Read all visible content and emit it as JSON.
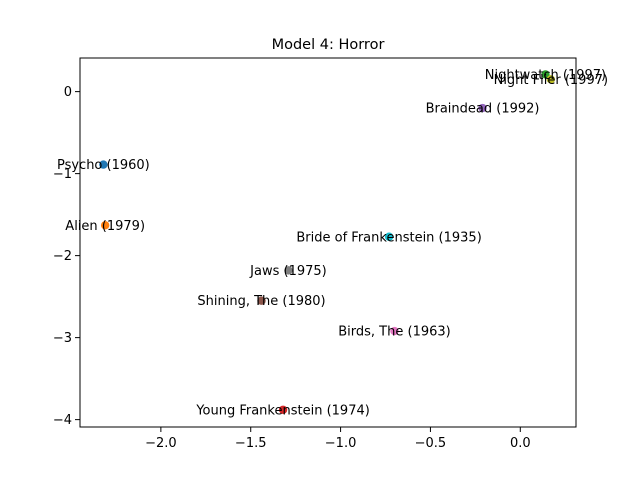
{
  "chart_data": {
    "type": "scatter",
    "title": "Model 4: Horror",
    "xlabel": "",
    "ylabel": "",
    "xlim": [
      -2.45,
      0.31
    ],
    "ylim": [
      -4.09,
      0.41
    ],
    "xticks": [
      -2.0,
      -1.5,
      -1.0,
      -0.5,
      0.0
    ],
    "xtick_labels": [
      "−2.0",
      "−1.5",
      "−1.0",
      "−0.5",
      "0.0"
    ],
    "yticks": [
      0,
      -1,
      -2,
      -3,
      -4
    ],
    "ytick_labels": [
      "0",
      "−1",
      "−2",
      "−3",
      "−4"
    ],
    "grid": false,
    "points": [
      {
        "label": "Psycho (1960)",
        "x": -2.32,
        "y": -0.89,
        "color": "#1f77b4"
      },
      {
        "label": "Alien (1979)",
        "x": -2.31,
        "y": -1.63,
        "color": "#ff7f0e"
      },
      {
        "label": "Nightwatch (1997)",
        "x": 0.14,
        "y": 0.21,
        "color": "#2ca02c"
      },
      {
        "label": "Young Frankenstein (1974)",
        "x": -1.32,
        "y": -3.88,
        "color": "#d62728"
      },
      {
        "label": "Braindead (1992)",
        "x": -0.21,
        "y": -0.2,
        "color": "#9467bd"
      },
      {
        "label": "Shining, The (1980)",
        "x": -1.44,
        "y": -2.55,
        "color": "#8c564b"
      },
      {
        "label": "Birds, The (1963)",
        "x": -0.7,
        "y": -2.92,
        "color": "#e377c2"
      },
      {
        "label": "Jaws (1975)",
        "x": -1.29,
        "y": -2.18,
        "color": "#7f7f7f"
      },
      {
        "label": "Night Flier (1997)",
        "x": 0.17,
        "y": 0.15,
        "color": "#bcbd22"
      },
      {
        "label": "Bride of Frankenstein (1935)",
        "x": -0.73,
        "y": -1.77,
        "color": "#17becf"
      }
    ]
  }
}
